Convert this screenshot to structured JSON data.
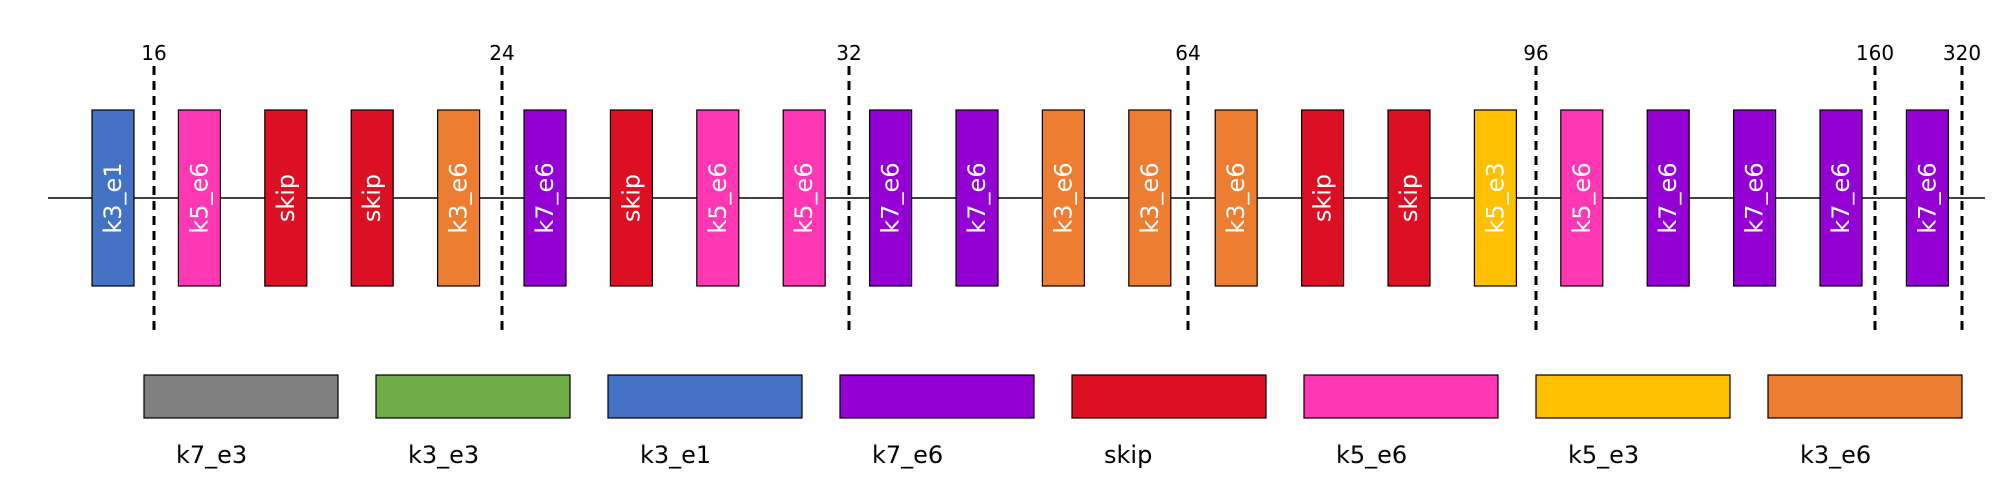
{
  "colors": {
    "k7_e3": "#808080",
    "k3_e3": "#70ad47",
    "k3_e1": "#4472c4",
    "k7_e6": "#9400d3",
    "skip": "#dc0f23",
    "k5_e6": "#ff37b4",
    "k5_e3": "#ffc000",
    "k3_e6": "#ed7d31"
  },
  "stage_markers": [
    "16",
    "24",
    "32",
    "64",
    "96",
    "160",
    "320"
  ],
  "blocks": [
    "k3_e1",
    "k5_e6",
    "skip",
    "skip",
    "k3_e6",
    "k7_e6",
    "skip",
    "k5_e6",
    "k5_e6",
    "k7_e6",
    "k7_e6",
    "k3_e6",
    "k3_e6",
    "k3_e6",
    "skip",
    "skip",
    "k5_e3",
    "k5_e6",
    "k7_e6",
    "k7_e6",
    "k7_e6",
    "k7_e6"
  ],
  "legend": [
    "k7_e3",
    "k3_e3",
    "k3_e1",
    "k7_e6",
    "skip",
    "k5_e6",
    "k5_e3",
    "k3_e6"
  ]
}
